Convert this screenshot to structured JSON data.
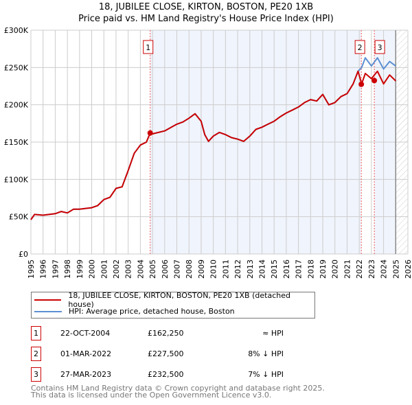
{
  "title": "18, JUBILEE CLOSE, KIRTON, BOSTON, PE20 1XB",
  "subtitle": "Price paid vs. HM Land Registry's House Price Index (HPI)",
  "chart_data": {
    "type": "line",
    "ylim": [
      0,
      300000
    ],
    "xlim": [
      1995,
      2026
    ],
    "y_ticks": [
      {
        "v": 0,
        "label": "£0"
      },
      {
        "v": 50000,
        "label": "£50K"
      },
      {
        "v": 100000,
        "label": "£100K"
      },
      {
        "v": 150000,
        "label": "£150K"
      },
      {
        "v": 200000,
        "label": "£200K"
      },
      {
        "v": 250000,
        "label": "£250K"
      },
      {
        "v": 300000,
        "label": "£300K"
      }
    ],
    "x_ticks": [
      "1995",
      "1996",
      "1997",
      "1998",
      "1999",
      "2000",
      "2001",
      "2002",
      "2003",
      "2004",
      "2005",
      "2006",
      "2007",
      "2008",
      "2009",
      "2010",
      "2011",
      "2012",
      "2013",
      "2014",
      "2015",
      "2016",
      "2017",
      "2018",
      "2019",
      "2020",
      "2021",
      "2022",
      "2023",
      "2024",
      "2025",
      "2026"
    ],
    "series": [
      {
        "name": "18, JUBILEE CLOSE, KIRTON, BOSTON, PE20 1XB (detached house)",
        "color": "#cc0000",
        "x": [
          1995,
          1995.3,
          1996,
          1997,
          1997.5,
          1998,
          1998.5,
          1999,
          2000,
          2000.5,
          2001,
          2001.5,
          2002,
          2002.5,
          2003,
          2003.5,
          2004,
          2004.5,
          2004.8,
          2005,
          2006,
          2007,
          2007.5,
          2008,
          2008.5,
          2009,
          2009.3,
          2009.6,
          2010,
          2010.5,
          2011,
          2011.5,
          2012,
          2012.5,
          2013,
          2013.5,
          2014,
          2014.5,
          2015,
          2015.5,
          2016,
          2016.5,
          2017,
          2017.5,
          2018,
          2018.5,
          2019,
          2019.5,
          2020,
          2020.5,
          2021,
          2021.5,
          2021.9,
          2022.2,
          2022.5,
          2023,
          2023.5,
          2024,
          2024.5,
          2025
        ],
        "y": [
          46000,
          53000,
          52000,
          54000,
          57000,
          55000,
          60000,
          60000,
          62000,
          65000,
          73000,
          76000,
          88000,
          90000,
          112000,
          135000,
          146000,
          150000,
          162000,
          161000,
          165000,
          174000,
          177000,
          182000,
          188000,
          178000,
          160000,
          151000,
          158000,
          163000,
          160000,
          156000,
          154000,
          151000,
          158000,
          167000,
          170000,
          174000,
          178000,
          184000,
          189000,
          193000,
          197000,
          203000,
          207000,
          205000,
          214000,
          200000,
          203000,
          211000,
          215000,
          228000,
          245000,
          228000,
          242000,
          235000,
          245000,
          228000,
          240000,
          232000
        ]
      },
      {
        "name": "HPI: Average price, detached house, Boston",
        "color": "#5b8fd1",
        "x": [
          1995,
          1995.3,
          1996,
          1997,
          1997.5,
          1998,
          1998.5,
          1999,
          2000,
          2000.5,
          2001,
          2001.5,
          2002,
          2002.5,
          2003,
          2003.5,
          2004,
          2004.5,
          2004.8,
          2005,
          2006,
          2007,
          2007.5,
          2008,
          2008.5,
          2009,
          2009.3,
          2009.6,
          2010,
          2010.5,
          2011,
          2011.5,
          2012,
          2012.5,
          2013,
          2013.5,
          2014,
          2014.5,
          2015,
          2015.5,
          2016,
          2016.5,
          2017,
          2017.5,
          2018,
          2018.5,
          2019,
          2019.5,
          2020,
          2020.5,
          2021,
          2021.5,
          2021.9,
          2022.2,
          2022.5,
          2023,
          2023.5,
          2024,
          2024.5,
          2025
        ],
        "y": [
          46000,
          53000,
          52000,
          54000,
          57000,
          55000,
          60000,
          60000,
          62000,
          65000,
          73000,
          76000,
          88000,
          90000,
          112000,
          135000,
          146000,
          150000,
          162000,
          161000,
          165000,
          174000,
          177000,
          182000,
          188000,
          178000,
          160000,
          151000,
          158000,
          163000,
          160000,
          156000,
          154000,
          151000,
          158000,
          167000,
          170000,
          174000,
          178000,
          184000,
          189000,
          193000,
          197000,
          203000,
          207000,
          205000,
          214000,
          200000,
          203000,
          211000,
          215000,
          228000,
          245000,
          250000,
          263000,
          252000,
          263000,
          248000,
          258000,
          252000
        ]
      }
    ],
    "sales": [
      {
        "n": "1",
        "x": 2004.81,
        "y": 162250
      },
      {
        "n": "2",
        "x": 2022.17,
        "y": 227500
      },
      {
        "n": "3",
        "x": 2023.24,
        "y": 232500
      }
    ]
  },
  "legend": {
    "property": "18, JUBILEE CLOSE, KIRTON, BOSTON, PE20 1XB (detached house)",
    "hpi": "HPI: Average price, detached house, Boston"
  },
  "transactions": [
    {
      "n": "1",
      "date": "22-OCT-2004",
      "price": "£162,250",
      "rel": "≈ HPI"
    },
    {
      "n": "2",
      "date": "01-MAR-2022",
      "price": "£227,500",
      "rel": "8% ↓ HPI"
    },
    {
      "n": "3",
      "date": "27-MAR-2023",
      "price": "£232,500",
      "rel": "7% ↓ HPI"
    }
  ],
  "footer": {
    "line1": "Contains HM Land Registry data © Crown copyright and database right 2025.",
    "line2": "This data is licensed under the Open Government Licence v3.0."
  }
}
